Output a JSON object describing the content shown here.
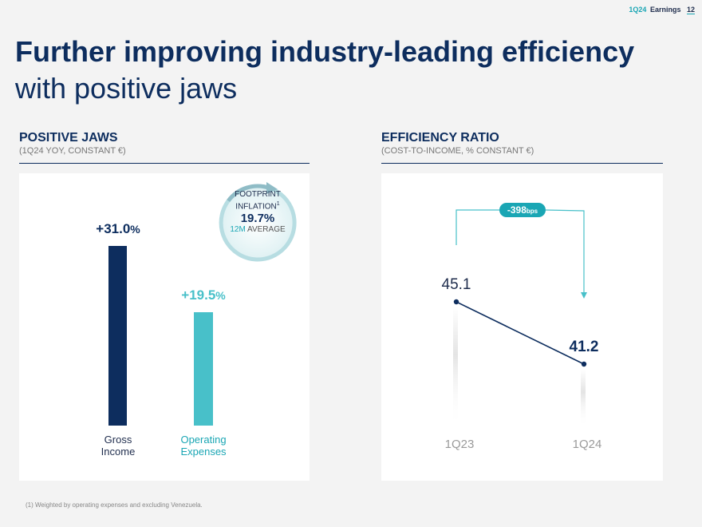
{
  "header": {
    "tag": "1Q24",
    "label": "Earnings",
    "page": "12"
  },
  "title": {
    "bold": "Further improving industry-leading efficiency",
    "regular": " with positive jaws"
  },
  "left": {
    "heading": "POSITIVE JAWS",
    "subheading": "(1Q24 YOY, CONSTANT €)",
    "footprint": {
      "line1": "FOOTPRINT",
      "line2": "INFLATION",
      "sup": "1",
      "value": "19.7%",
      "avg_em": "12M",
      "avg_rest": "AVERAGE"
    }
  },
  "right": {
    "heading": "EFFICIENCY RATIO",
    "subheading": "(COST-TO-INCOME, % CONSTANT €)",
    "delta": {
      "value": "-398",
      "unit": "bps"
    }
  },
  "footnote": "(1) Weighted by operating expenses and excluding Venezuela.",
  "colors": {
    "navy": "#0d2d5e",
    "teal": "#48c0c9",
    "accent": "#1aa6b4"
  },
  "chart_data": [
    {
      "type": "bar",
      "title": "POSITIVE JAWS",
      "subtitle": "(1Q24 YOY, CONSTANT €)",
      "categories": [
        [
          "Gross",
          "Income"
        ],
        [
          "Operating",
          "Expenses"
        ]
      ],
      "values": [
        31.0,
        19.5
      ],
      "value_labels": [
        {
          "sign": "+",
          "num": "31.0",
          "pct": "%"
        },
        {
          "sign": "+",
          "num": "19.5",
          "pct": "%"
        }
      ],
      "ylim": [
        0,
        33
      ]
    },
    {
      "type": "line",
      "title": "EFFICIENCY RATIO",
      "subtitle": "(COST-TO-INCOME, % CONSTANT €)",
      "x": [
        "1Q23",
        "1Q24"
      ],
      "values": [
        45.1,
        41.2
      ],
      "value_labels": [
        "45.1",
        "41.2"
      ],
      "ylim": [
        36,
        49
      ]
    }
  ]
}
